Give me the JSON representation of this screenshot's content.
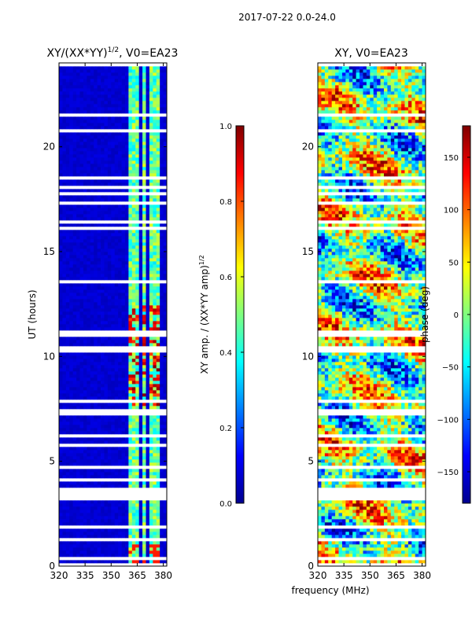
{
  "figure": {
    "suptitle": "2017-07-22 0.0-24.0",
    "shared_xlabel": "frequency (MHz)"
  },
  "chart_data": [
    {
      "type": "heatmap",
      "title_main": "XY/(XX*YY)",
      "title_sup": "1/2",
      "title_tail": ", V0=EA23",
      "xlabel": "",
      "ylabel": "UT (hours)",
      "xlim": [
        320,
        382
      ],
      "ylim": [
        0,
        24
      ],
      "xticks": [
        320,
        335,
        350,
        365,
        380
      ],
      "yticks": [
        0,
        5,
        10,
        15,
        20
      ],
      "colorbar": {
        "label_main": "XY amp. / (XX*YY amp)",
        "label_sup": "1/2",
        "range": [
          0.0,
          1.0
        ],
        "ticks": [
          "0.0",
          "0.2",
          "0.4",
          "0.6",
          "0.8",
          "1.0"
        ],
        "colormap": "jet"
      },
      "description": "Amplitude ratio vs frequency and UT; mostly low (~0.05) except bright channel groups near 361-366 MHz and 372-378 MHz."
    },
    {
      "type": "heatmap",
      "title_main": "XY, V0=EA23",
      "xlabel": "frequency (MHz)",
      "ylabel": "",
      "xlim": [
        320,
        382
      ],
      "ylim": [
        0,
        24
      ],
      "xticks": [
        320,
        335,
        350,
        365,
        380
      ],
      "yticks": [
        0,
        5,
        10,
        15,
        20
      ],
      "colorbar": {
        "label": "phase (deg)",
        "range": [
          -180,
          180
        ],
        "ticks": [
          "150",
          "100",
          "50",
          "0",
          "−50",
          "−100",
          "−150"
        ],
        "colormap": "jet"
      },
      "description": "XY phase vs frequency and UT; noisy structure spanning the full -180 to 180 degree range."
    }
  ],
  "flagged_time_gaps_ut": [
    [
      3.2,
      3.7
    ],
    [
      4.7,
      4.8
    ],
    [
      6.2,
      6.3
    ],
    [
      7.2,
      7.5
    ],
    [
      10.2,
      10.5
    ],
    [
      11.0,
      11.3
    ],
    [
      13.5,
      13.6
    ],
    [
      16.0,
      16.1
    ],
    [
      17.3,
      17.4
    ],
    [
      18.0,
      18.1
    ]
  ],
  "colors": {
    "background": "#ffffff",
    "axes": "#000000"
  }
}
